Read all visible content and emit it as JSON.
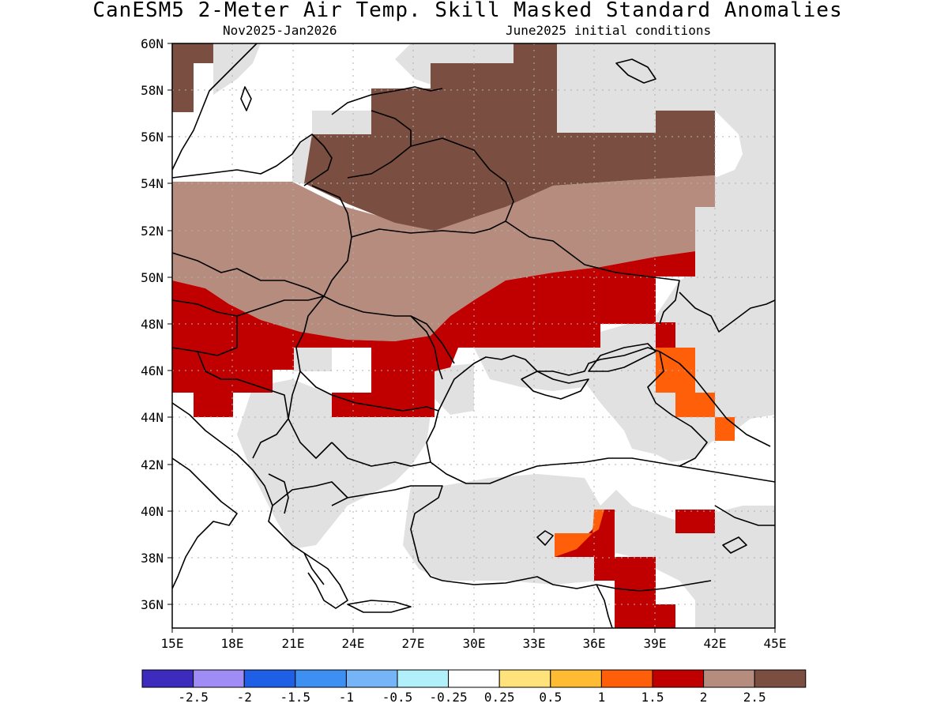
{
  "title": "CanESM5 2-Meter Air Temp. Skill Masked Standard Anomalies",
  "subtitle_left": "Nov2025-Jan2026",
  "subtitle_right": "June2025 initial conditions",
  "map": {
    "region": "Eastern Europe, Balkans, Black Sea and Turkey",
    "lon_range": [
      15,
      45
    ],
    "lat_range": [
      35,
      60
    ],
    "lon_labels": [
      "15E",
      "18E",
      "21E",
      "24E",
      "27E",
      "30E",
      "33E",
      "36E",
      "39E",
      "42E",
      "45E"
    ],
    "lat_labels": [
      "60N",
      "58N",
      "56N",
      "54N",
      "52N",
      "50N",
      "48N",
      "46N",
      "44N",
      "42N",
      "40N",
      "38N",
      "36N"
    ],
    "gridlines": true,
    "no_skill_color": "#e1e1e1"
  },
  "legend": {
    "placement": "bottom",
    "colors": [
      "#3c2bbd",
      "#9f8cf5",
      "#1f5fe6",
      "#3d8ff2",
      "#74b4f7",
      "#b1f0fb",
      "#ffffff",
      "#ffe27a",
      "#ffbc33",
      "#ff5f09",
      "#c00000",
      "#b68c7f",
      "#7a4f42"
    ],
    "labels": [
      "-2.5",
      "-2",
      "-1.5",
      "-1",
      "-0.5",
      "-0.25",
      "0.25",
      "0.5",
      "1",
      "1.5",
      "2",
      "2.5"
    ]
  }
}
